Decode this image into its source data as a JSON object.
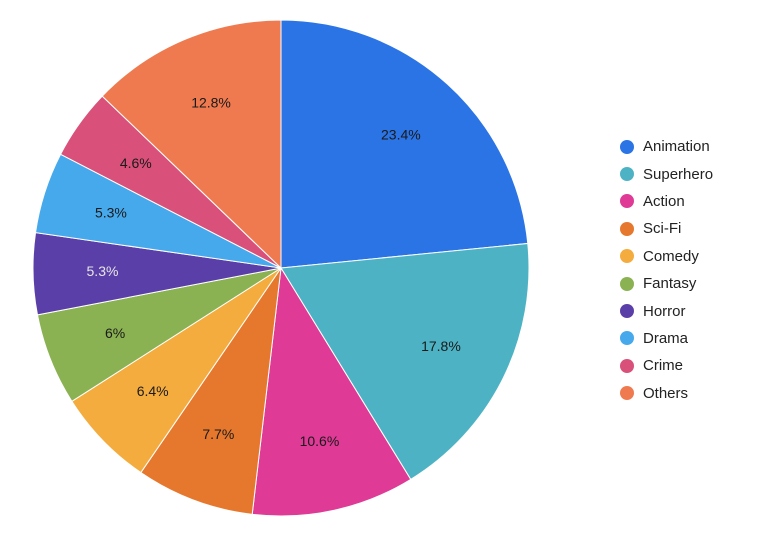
{
  "chart_data": {
    "type": "pie",
    "title": "",
    "legend_position": "right",
    "slices": [
      {
        "label": "Animation",
        "value": 23.4,
        "display": "23.4%",
        "color": "#2B74E6",
        "label_color": "#1a1a1a"
      },
      {
        "label": "Superhero",
        "value": 17.8,
        "display": "17.8%",
        "color": "#4DB3C4",
        "label_color": "#1a1a1a"
      },
      {
        "label": "Action",
        "value": 10.6,
        "display": "10.6%",
        "color": "#DE3A96",
        "label_color": "#1a1a1a"
      },
      {
        "label": "Sci-Fi",
        "value": 7.7,
        "display": "7.7%",
        "color": "#E6782E",
        "label_color": "#1a1a1a"
      },
      {
        "label": "Comedy",
        "value": 6.4,
        "display": "6.4%",
        "color": "#F4AC3E",
        "label_color": "#1a1a1a"
      },
      {
        "label": "Fantasy",
        "value": 6,
        "display": "6%",
        "color": "#8BB252",
        "label_color": "#1a1a1a"
      },
      {
        "label": "Horror",
        "value": 5.3,
        "display": "5.3%",
        "color": "#5B3FA8",
        "label_color": "#e6e6e6"
      },
      {
        "label": "Drama",
        "value": 5.3,
        "display": "5.3%",
        "color": "#46A9EC",
        "label_color": "#1a1a1a"
      },
      {
        "label": "Crime",
        "value": 4.6,
        "display": "4.6%",
        "color": "#D9507A",
        "label_color": "#1a1a1a"
      },
      {
        "label": "Others",
        "value": 12.8,
        "display": "12.8%",
        "color": "#EF7A4F",
        "label_color": "#1a1a1a"
      }
    ]
  }
}
